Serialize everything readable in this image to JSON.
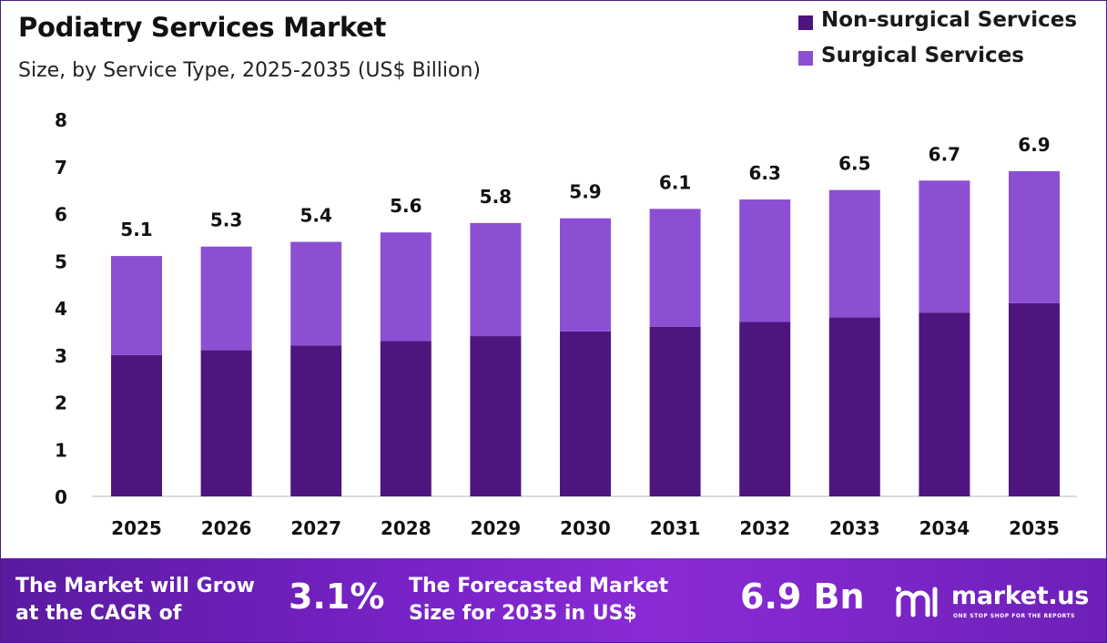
{
  "header": {
    "title": "Podiatry Services Market",
    "subtitle": "Size, by Service Type, 2025-2035 (US$ Billion)"
  },
  "legend": {
    "items": [
      {
        "label": "Non-surgical Services",
        "color": "#4e157f"
      },
      {
        "label": "Surgical Services",
        "color": "#8c4fd4"
      }
    ]
  },
  "chart_data": {
    "type": "bar",
    "stacked": true,
    "title": "Podiatry Services Market",
    "subtitle": "Size, by Service Type, 2025-2035 (US$ Billion)",
    "xlabel": "",
    "ylabel": "",
    "categories": [
      "2025",
      "2026",
      "2027",
      "2028",
      "2029",
      "2030",
      "2031",
      "2032",
      "2033",
      "2034",
      "2035"
    ],
    "series": [
      {
        "name": "Non-surgical Services",
        "color": "#4e157f",
        "values": [
          3.0,
          3.1,
          3.2,
          3.3,
          3.4,
          3.5,
          3.6,
          3.7,
          3.8,
          3.9,
          4.1
        ]
      },
      {
        "name": "Surgical Services",
        "color": "#8c4fd4",
        "values": [
          2.1,
          2.2,
          2.2,
          2.3,
          2.4,
          2.4,
          2.5,
          2.6,
          2.7,
          2.8,
          2.8
        ]
      }
    ],
    "totals": [
      5.1,
      5.3,
      5.4,
      5.6,
      5.8,
      5.9,
      6.1,
      6.3,
      6.5,
      6.7,
      6.9
    ],
    "total_labels": [
      "5.1",
      "5.3",
      "5.4",
      "5.6",
      "5.8",
      "5.9",
      "6.1",
      "6.3",
      "6.5",
      "6.7",
      "6.9"
    ],
    "ylim": [
      0,
      8
    ],
    "yticks": [
      "0",
      "1",
      "2",
      "3",
      "4",
      "5",
      "6",
      "7",
      "8"
    ],
    "grid": false,
    "legend_position": "top-right"
  },
  "footer": {
    "cagr_text_line1": "The Market will Grow",
    "cagr_text_line2": "at the CAGR of",
    "cagr_value": "3.1%",
    "forecast_text_line1": "The Forecasted Market",
    "forecast_text_line2": "Size for 2035 in US$",
    "forecast_value": "6.9 Bn",
    "logo_name": "market.us",
    "logo_tagline": "ONE STOP SHOP FOR THE REPORTS",
    "logo_icon": "market-us-logo-icon"
  }
}
